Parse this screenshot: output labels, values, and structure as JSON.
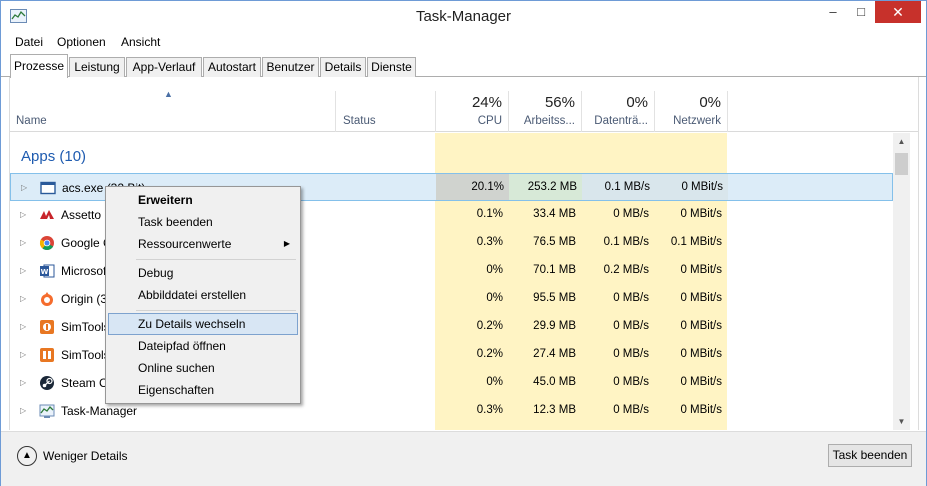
{
  "window": {
    "title": "Task-Manager"
  },
  "titlebar": {
    "minimize": "–",
    "maximize": "□",
    "close": "✕"
  },
  "menu": [
    "Datei",
    "Optionen",
    "Ansicht"
  ],
  "tabs": [
    "Prozesse",
    "Leistung",
    "App-Verlauf",
    "Autostart",
    "Benutzer",
    "Details",
    "Dienste"
  ],
  "columns": {
    "name": "Name",
    "status": "Status",
    "cpu": {
      "pct": "24%",
      "label": "CPU"
    },
    "memory": {
      "pct": "56%",
      "label": "Arbeitss..."
    },
    "disk": {
      "pct": "0%",
      "label": "Datenträ..."
    },
    "network": {
      "pct": "0%",
      "label": "Netzwerk"
    }
  },
  "group": {
    "title": "Apps (10)"
  },
  "processes": [
    {
      "name": "acs.exe (32 Bit)",
      "icon": "window-icon",
      "cpu": "20.1%",
      "mem": "253.2 MB",
      "disk": "0.1 MB/s",
      "net": "0 MBit/s"
    },
    {
      "name": "Assetto Corsa",
      "icon": "assetto-icon",
      "cpu": "0.1%",
      "mem": "33.4 MB",
      "disk": "0 MB/s",
      "net": "0 MBit/s"
    },
    {
      "name": "Google Chrome",
      "icon": "chrome-icon",
      "cpu": "0.3%",
      "mem": "76.5 MB",
      "disk": "0.1 MB/s",
      "net": "0.1 MBit/s"
    },
    {
      "name": "Microsoft Word",
      "icon": "word-icon",
      "cpu": "0%",
      "mem": "70.1 MB",
      "disk": "0.2 MB/s",
      "net": "0 MBit/s"
    },
    {
      "name": "Origin (32 Bit)",
      "icon": "origin-icon",
      "cpu": "0%",
      "mem": "95.5 MB",
      "disk": "0 MB/s",
      "net": "0 MBit/s"
    },
    {
      "name": "SimTools",
      "icon": "simtools-icon",
      "cpu": "0.2%",
      "mem": "29.9 MB",
      "disk": "0 MB/s",
      "net": "0 MBit/s"
    },
    {
      "name": "SimTools",
      "icon": "simtools-icon",
      "cpu": "0.2%",
      "mem": "27.4 MB",
      "disk": "0 MB/s",
      "net": "0 MBit/s"
    },
    {
      "name": "Steam Client",
      "icon": "steam-icon",
      "cpu": "0%",
      "mem": "45.0 MB",
      "disk": "0 MB/s",
      "net": "0 MBit/s"
    },
    {
      "name": "Task-Manager",
      "icon": "taskmanager-icon",
      "cpu": "0.3%",
      "mem": "12.3 MB",
      "disk": "0 MB/s",
      "net": "0 MBit/s"
    }
  ],
  "context_menu": {
    "expand": "Erweitern",
    "end_task": "Task beenden",
    "resource_values": "Ressourcenwerte",
    "debug": "Debug",
    "create_dump": "Abbilddatei erstellen",
    "go_to_details": "Zu Details wechseln",
    "open_file_location": "Dateipfad öffnen",
    "search_online": "Online suchen",
    "properties": "Eigenschaften"
  },
  "footer": {
    "fewer_details": "Weniger Details",
    "end_task": "Task beenden"
  },
  "colors": {
    "accent": "#1e5bb0",
    "close": "#c7312b",
    "heat": "#fff4c4",
    "selection": "#dcecf8"
  }
}
